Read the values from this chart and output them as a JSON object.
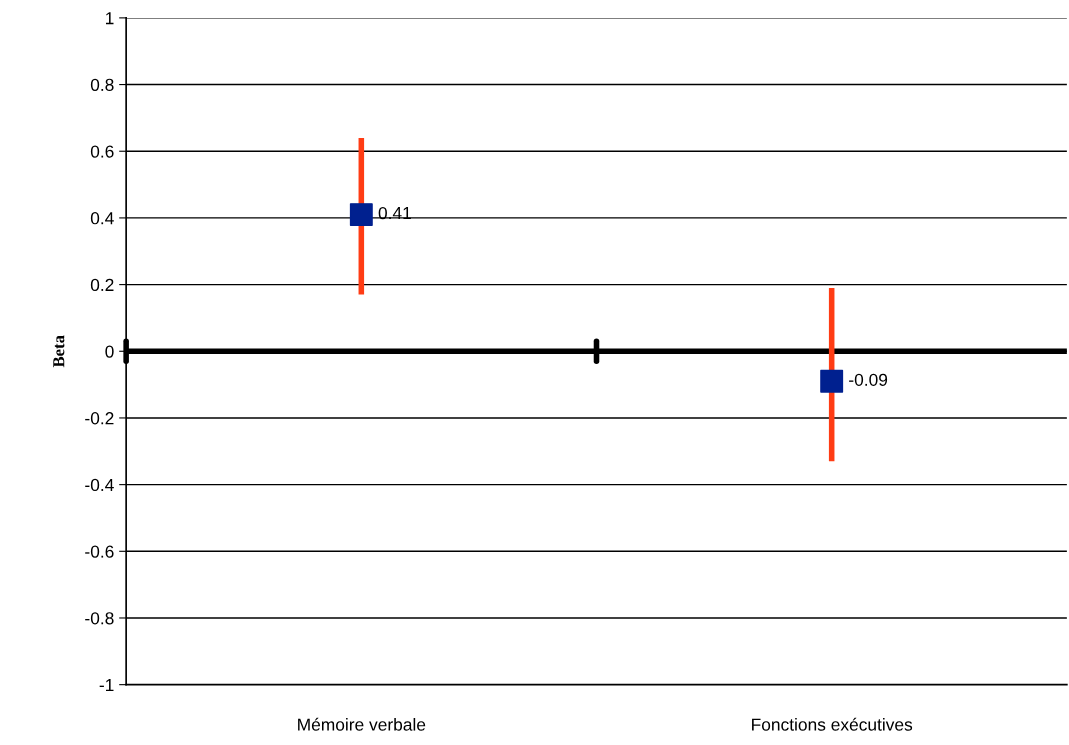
{
  "chart_data": {
    "type": "scatter",
    "ylabel": "Beta",
    "categories": [
      "Mémoire verbale",
      "Fonctions exécutives"
    ],
    "series": [
      {
        "color": "#00208f",
        "values": [
          0.41,
          -0.09
        ],
        "errors": [
          [
            0.17,
            0.64
          ],
          [
            -0.33,
            0.19
          ]
        ]
      }
    ],
    "marker": "square",
    "data_labels": true,
    "ylim": [
      -1,
      1
    ],
    "yticks": [
      -1,
      -0.8,
      -0.6,
      -0.4,
      -0.2,
      0,
      0.2,
      0.4,
      0.6,
      0.8,
      1
    ],
    "grid": "y",
    "ref_lines": [
      {
        "axis": "y",
        "value": 0,
        "color": "#000000"
      }
    ]
  }
}
